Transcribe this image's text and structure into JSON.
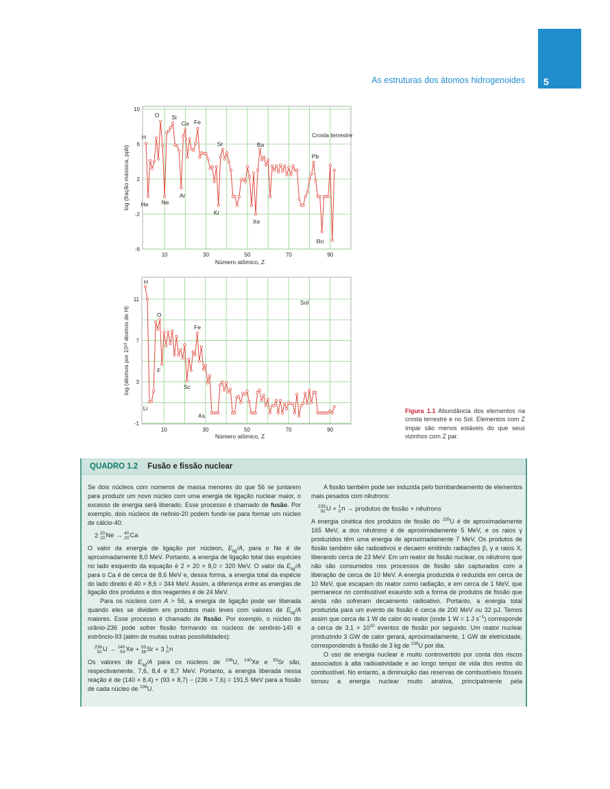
{
  "header": {
    "running_title": "As estruturas dos átomos hidrogenoides",
    "page_number": "5",
    "accent_color": "#1f8dcb"
  },
  "chart_data": [
    {
      "type": "line",
      "title": "",
      "panel_label": "Crosta terrestre",
      "xlabel": "Número atômico, Z",
      "ylabel": "log (fração mássica, ppb)",
      "xticks": [
        10,
        30,
        50,
        70,
        90
      ],
      "yticks": [
        10,
        6,
        2,
        -2,
        -6
      ],
      "ylim": [
        -6,
        10
      ],
      "xlim": [
        0,
        95
      ],
      "grid": true,
      "color": "#e0463a",
      "x_start": 1,
      "values": [
        6.1,
        0.0,
        4.1,
        3.2,
        4.0,
        6.7,
        4.3,
        8.6,
        5.8,
        0.0,
        7.3,
        7.5,
        7.9,
        8.4,
        5.9,
        5.8,
        5.2,
        1.0,
        6.9,
        7.7,
        4.5,
        6.6,
        5.4,
        5.3,
        6.1,
        7.8,
        4.5,
        5.0,
        4.9,
        4.9,
        4.3,
        3.2,
        3.4,
        1.7,
        3.4,
        -1.0,
        4.5,
        5.4,
        4.3,
        5.0,
        4.0,
        3.0,
        0.0,
        0.0,
        -1.0,
        0.0,
        1.9,
        2.0,
        1.7,
        3.4,
        2.3,
        -1.0,
        2.7,
        -2.0,
        3.0,
        5.4,
        4.2,
        4.5,
        3.6,
        4.2,
        0.0,
        3.5,
        3.0,
        3.5,
        2.8,
        3.6,
        2.9,
        3.5,
        2.5,
        3.3,
        2.5,
        3.5,
        3.0,
        3.0,
        -0.3,
        -1.0,
        -1.0,
        0.0,
        0.5,
        2.0,
        2.6,
        3.9,
        1.8,
        0.0,
        0.0,
        -4.0,
        0.0,
        0.0,
        0.0,
        3.6,
        -5.0,
        3.0
      ],
      "annotations": [
        {
          "text": "H",
          "z": 1
        },
        {
          "text": "He",
          "z": 2
        },
        {
          "text": "O",
          "z": 8
        },
        {
          "text": "Ne",
          "z": 10
        },
        {
          "text": "Si",
          "z": 14
        },
        {
          "text": "Ar",
          "z": 18
        },
        {
          "text": "Ca",
          "z": 20
        },
        {
          "text": "Fe",
          "z": 26
        },
        {
          "text": "Sr",
          "z": 38
        },
        {
          "text": "Kr",
          "z": 36
        },
        {
          "text": "Ba",
          "z": 56
        },
        {
          "text": "Xe",
          "z": 54
        },
        {
          "text": "Pb",
          "z": 82
        },
        {
          "text": "Rn",
          "z": 86
        }
      ]
    },
    {
      "type": "line",
      "title": "",
      "panel_label": "Sol",
      "xlabel": "Número atômico, Z",
      "ylabel": "log (átomos por 10¹² átomos de H)",
      "xticks": [
        10,
        30,
        50,
        70,
        90
      ],
      "yticks": [
        11,
        7,
        3,
        -1
      ],
      "ylim": [
        -1,
        12.7
      ],
      "xlim": [
        0,
        95
      ],
      "grid": true,
      "color": "#e0463a",
      "x_start": 1,
      "values": [
        12.2,
        11.0,
        1.05,
        1.1,
        2.1,
        8.8,
        8.1,
        9.0,
        4.7,
        7.8,
        6.5,
        7.8,
        6.7,
        7.9,
        5.6,
        7.4,
        5.6,
        6.1,
        5.3,
        6.6,
        3.1,
        5.2,
        4.1,
        5.9,
        5.6,
        7.7,
        5.0,
        6.4,
        4.2,
        4.6,
        2.9,
        3.6,
        0.0,
        0.0,
        0.0,
        0.0,
        2.7,
        3.0,
        2.2,
        2.9,
        2.0,
        2.3,
        0.0,
        0.0,
        1.5,
        1.6,
        1.0,
        1.9,
        1.8,
        2.1,
        1.1,
        0.0,
        0.0,
        0.0,
        2.0,
        2.2,
        1.2,
        1.7,
        0.7,
        1.3,
        0.0,
        0.7,
        0.7,
        1.2,
        0.0,
        1.2,
        0.0,
        0.9,
        0.4,
        1.0,
        0.9,
        0.9,
        0.0,
        1.8,
        -0.3,
        0.7,
        0.9,
        1.9,
        0.9,
        2.2,
        1.0,
        2.0,
        2.0,
        0.0,
        0.0,
        0.0,
        0.0,
        0.0,
        0.0,
        0.2,
        0.0,
        0.6
      ],
      "annotations": [
        {
          "text": "H",
          "z": 1
        },
        {
          "text": "Li",
          "z": 3
        },
        {
          "text": "O",
          "z": 8
        },
        {
          "text": "F",
          "z": 9
        },
        {
          "text": "Fe",
          "z": 26
        },
        {
          "text": "Sc",
          "z": 21
        },
        {
          "text": "As",
          "z": 33
        }
      ]
    }
  ],
  "caption": {
    "label": "Figura 1.1",
    "text": " Abundância dos elementos na crosta terrestre e no Sol. Elementos com Z ímpar são menos estáveis do que seus vizinhos com Z par."
  },
  "box": {
    "number": "QUADRO 1.2",
    "title": "Fusão e fissão nuclear",
    "left": [
      {
        "kind": "p",
        "segs": [
          "Se dois núcleos com números de massa menores do que 56 se juntarem para produzir um novo núcleo com uma energia de ligação nuclear maior, o excesso de energia será liberado. Esse processo é chamado de ",
          {
            "b": "fusão"
          },
          ". Por exemplo, dois núcleos de neônio-20 podem fundir-se para formar um núcleo de cálcio-40:"
        ]
      },
      {
        "kind": "eq",
        "segs": [
          "2 ",
          {
            "nuc": [
              "20",
              "10",
              "Ne"
            ]
          },
          " → ",
          {
            "nuc": [
              "40",
              "20",
              "Ca"
            ]
          }
        ]
      },
      {
        "kind": "p",
        "segs": [
          "O valor da energia de ligação por núcleon, ",
          {
            "i": "E"
          },
          {
            "sub": "lig"
          },
          {
            "i": "/A"
          },
          ", para o Ne é de aproximadamente 8,0 MeV. Portanto, a energia de ligação total das espécies no lado esquerdo da equação é 2 × 20 × 8,0 = 320 MeV. O valor da ",
          {
            "i": "E"
          },
          {
            "sub": "lig"
          },
          {
            "i": "/A"
          },
          " para o Ca é de cerca de 8,6 MeV e, dessa forma, a energia total da espécie do lado direito é 40 × 8,6 = 344 MeV. Assim, a diferença entre as energias de ligação dos produtos e dos reagentes é de 24 MeV."
        ]
      },
      {
        "kind": "pi",
        "segs": [
          "Para os núcleos com ",
          {
            "i": "A"
          },
          " > 56, a energia de ligação pode ser liberada quando eles se dividem em produtos mais leves com valores de ",
          {
            "i": "E"
          },
          {
            "sub": "lig"
          },
          {
            "i": "/A"
          },
          " maiores. Esse processo é chamado de ",
          {
            "b": "fissão"
          },
          ". Por exemplo, o núcleo do urânio-236 pode sofrer fissão formando os núcleos de xenônio-140 e estrôncio-93 (além de muitas outras possibilidades):"
        ]
      },
      {
        "kind": "eq",
        "segs": [
          {
            "nuc": [
              "236",
              "92",
              "U"
            ]
          },
          " → ",
          {
            "nuc": [
              "140",
              "54",
              "Xe"
            ]
          },
          " + ",
          {
            "nuc": [
              "93",
              "38",
              "Sr"
            ]
          },
          " + 3 ",
          {
            "nuc": [
              "1",
              "0",
              "n"
            ]
          }
        ]
      },
      {
        "kind": "p",
        "segs": [
          "Os valores de ",
          {
            "i": "E"
          },
          {
            "sub": "lig"
          },
          {
            "i": "/A"
          },
          " para os núcleos de ",
          {
            "sup": "236"
          },
          "U, ",
          {
            "sup": "140"
          },
          "Xe e ",
          {
            "sup": "93"
          },
          "Sr são, respectivamente, 7,6, 8,4 e 8,7 MeV. Portanto, a energia liberada nessa reação é de (140 × 8,4) + (93 × 8,7) − (236 × 7,6) = 191,5 MeV para a fissão de cada núcleo de ",
          {
            "sup": "236"
          },
          "U."
        ]
      }
    ],
    "right": [
      {
        "kind": "pi",
        "segs": [
          "A fissão também pode ser induzida pelo bombardeamento de elementos mais pesados com nêutrons:"
        ]
      },
      {
        "kind": "eq",
        "segs": [
          {
            "nuc": [
              "235",
              "92",
              "U"
            ]
          },
          " + ",
          {
            "nuc": [
              "1",
              "0",
              "n"
            ]
          },
          " → produtos de fissão + nêutrons"
        ]
      },
      {
        "kind": "p",
        "segs": [
          "A energia cinética dos produtos de fissão do ",
          {
            "sup": "235"
          },
          "U é de aproximadamente 165 MeV, a dos nêutrons é de aproximadamente 5 MeV, e os raios γ produzidos têm uma energia de aproximadamente 7 MeV. Os produtos de fissão também são radioativos e decaem emitindo radiações β, γ e raios X, liberando cerca de 23 MeV. Em um reator de fissão nuclear, os nêutrons que não são consumidos nos processos de fissão são capturados com a liberação de cerca de 10 MeV. A energia produzida é reduzida em cerca de 10 MeV, que escapam do reator como radiação, e em cerca de 1 MeV, que permanece no combustível exaurido sob a forma de produtos de fissão que ainda não sofreram decaimento radioativo. Portanto, a energia total produzida para um evento de fissão é cerca de 200 MeV ou 32 pJ. Temos assim que cerca de 1 W de calor do reator (onde 1 W = 1 J s",
          {
            "sup": "−1"
          },
          ") corresponde a cerca de 3,1 × 10",
          {
            "sup": "10"
          },
          " eventos de fissão por segundo. Um reator nuclear produzindo 3 GW de calor gerará, aproximadamente, 1 GW de eletricidade, correspondendo à fissão de 3 kg de ",
          {
            "sup": "235"
          },
          "U por dia."
        ]
      },
      {
        "kind": "pil",
        "segs": [
          "O uso de energia nuclear é muito controvertido por conta dos riscos associados à alta radioatividade e ao longo tempo de vida dos restos do combustível. No entanto, a diminuição das reservas de combustíveis fósseis tornou a energia nuclear muito atrativa, principalmente pela"
        ]
      }
    ]
  }
}
